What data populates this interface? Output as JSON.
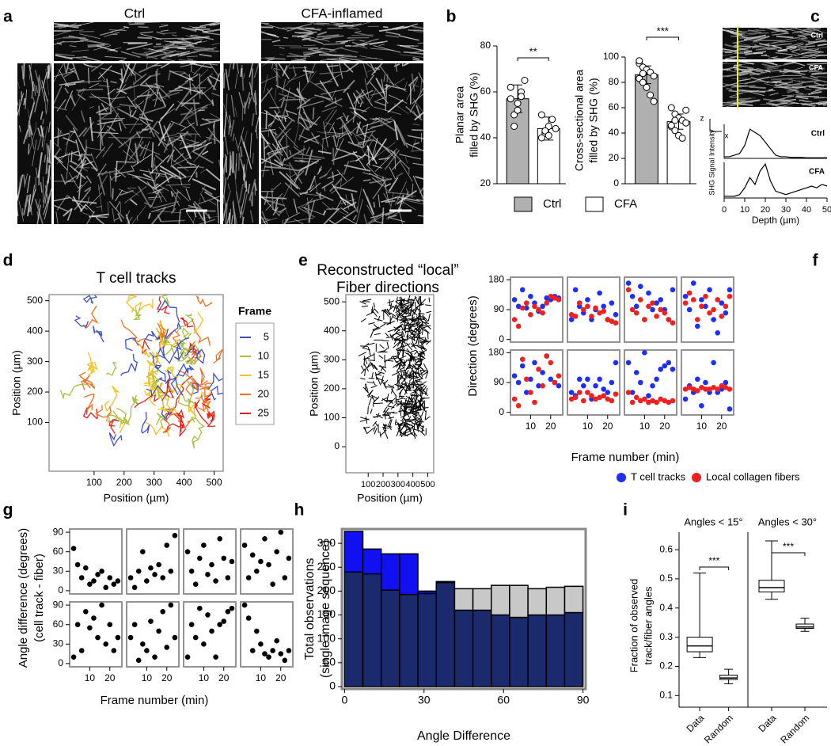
{
  "chart_data": [
    {
      "type": "image",
      "label": "a",
      "titles": [
        "Ctrl",
        "CFA-inflamed"
      ]
    },
    {
      "type": "bar",
      "label": "b",
      "ylabel": [
        "Planar area",
        "filled by SHG (%)"
      ],
      "categories": [
        "Ctrl",
        "CFA"
      ],
      "colors": [
        "#b0b0b0",
        "#ffffff"
      ],
      "values": [
        57,
        44
      ],
      "errors": [
        6,
        5
      ],
      "points": [
        [
          62,
          50,
          55,
          60,
          65,
          57,
          45,
          52,
          58
        ],
        [
          50,
          42,
          45,
          48,
          44,
          40,
          43,
          41
        ]
      ],
      "ylim": [
        20,
        80
      ],
      "yticks": [
        20,
        40,
        60,
        80
      ],
      "annotation": "**"
    },
    {
      "type": "bar",
      "ylabel": [
        "Cross-sectional area",
        "filled by SHG (%)"
      ],
      "colors": [
        "#b0b0b0",
        "#ffffff"
      ],
      "values": [
        86,
        49
      ],
      "errors": [
        7,
        6
      ],
      "points": [
        [
          95,
          92,
          90,
          88,
          85,
          83,
          80,
          76,
          70,
          65,
          97,
          87
        ],
        [
          60,
          55,
          52,
          50,
          48,
          45,
          42,
          38,
          36,
          58,
          46,
          50
        ]
      ],
      "ylim": [
        0,
        100
      ],
      "yticks": [
        0,
        20,
        40,
        60,
        80,
        100
      ],
      "annotation": "***"
    },
    {
      "type": "line",
      "label": "c",
      "image_labels": [
        "Ctrl",
        "CFA"
      ],
      "axis_labels": [
        "z",
        "x"
      ],
      "ylabel": "SHG Signal Intensity",
      "xlabel": "Depth (µm)",
      "color": "#000000",
      "x": [
        0,
        2.5,
        5,
        7.5,
        10,
        12.5,
        15,
        17.5,
        20,
        22.5,
        25,
        27.5,
        30,
        32.5,
        35,
        37.5,
        40,
        42.5,
        45,
        47.5,
        50
      ],
      "series": [
        {
          "name": "Ctrl",
          "values": [
            0.05,
            0.05,
            0.1,
            0.15,
            0.4,
            0.9,
            0.8,
            0.7,
            0.5,
            0.3,
            0.1,
            0.05,
            0.05,
            0.03,
            0.03,
            0.03,
            0.02,
            0.02,
            0.02,
            0.02,
            0.02
          ]
        },
        {
          "name": "CFA",
          "values": [
            0.05,
            0.05,
            0.05,
            0.1,
            0.3,
            0.6,
            0.4,
            0.8,
            1.0,
            0.5,
            0.2,
            0.15,
            0.1,
            0.15,
            0.2,
            0.25,
            0.3,
            0.35,
            0.3,
            0.4,
            0.35
          ]
        }
      ],
      "xlim": [
        0,
        50
      ],
      "xticks": [
        0,
        10,
        20,
        30,
        40,
        50
      ],
      "ylim": [
        0,
        1.05
      ]
    },
    {
      "type": "tracks",
      "label": "d",
      "title": "T cell tracks",
      "xlabel": "Position (µm)",
      "ylabel": "Position (µm)",
      "xlim": [
        -50,
        530
      ],
      "ylim": [
        -60,
        520
      ],
      "xticks": [
        100,
        200,
        300,
        400,
        500
      ],
      "yticks": [
        100,
        200,
        300,
        400,
        500
      ],
      "legend": {
        "title": "Frame",
        "labels": [
          5,
          10,
          15,
          20,
          25
        ],
        "colors": [
          "#3f4fc0",
          "#a8c040",
          "#f2c31f",
          "#f07020",
          "#e02020"
        ]
      }
    },
    {
      "type": "fibers",
      "label": "e",
      "title": [
        "Reconstructed “local”",
        "Fiber directions"
      ],
      "xlabel": "Position (µm)",
      "ylabel": "Position (µm)",
      "xlim": [
        -50,
        540
      ],
      "ylim": [
        -90,
        525
      ],
      "xticks": [
        100,
        200,
        300,
        400,
        500
      ],
      "yticks": [
        0,
        100,
        200,
        300,
        400,
        500
      ],
      "color": "#000000"
    },
    {
      "type": "scatter",
      "label": "f",
      "ylabel": [
        "Direction (degrees)"
      ],
      "xlabel": "Frame number (min)",
      "x": [
        2,
        4,
        6,
        8,
        10,
        12,
        14,
        16,
        18,
        20,
        22,
        24
      ],
      "xlim": [
        0,
        26
      ],
      "xticks": [
        10,
        20
      ],
      "ylim": [
        -8,
        188
      ],
      "yticks": [
        0,
        90,
        180
      ],
      "series": [
        {
          "name": "T cell tracks",
          "color": "#1f2ff0",
          "panels": [
            [
              120,
              100,
              150,
              95,
              130,
              110,
              85,
              100,
              125,
              120,
              130,
              125
            ],
            [
              60,
              150,
              100,
              80,
              120,
              60,
              90,
              140,
              100,
              60,
              110,
              75
            ],
            [
              170,
              130,
              100,
              160,
              60,
              140,
              90,
              110,
              120,
              90,
              60,
              150
            ],
            [
              130,
              90,
              170,
              40,
              120,
              100,
              150,
              60,
              20,
              110,
              80,
              150
            ],
            [
              110,
              90,
              140,
              60,
              100,
              150,
              80,
              120,
              170,
              100,
              90,
              80
            ],
            [
              60,
              50,
              100,
              80,
              100,
              40,
              80,
              100,
              70,
              60,
              90,
              150
            ],
            [
              150,
              60,
              120,
              90,
              180,
              50,
              80,
              100,
              130,
              140,
              150,
              130
            ],
            [
              40,
              80,
              60,
              100,
              20,
              90,
              60,
              150,
              60,
              70,
              90,
              10
            ]
          ]
        },
        {
          "name": "Local collagen fibers",
          "color": "#ee2020",
          "panels": [
            [
              60,
              40,
              95,
              110,
              75,
              100,
              90,
              80,
              110,
              130,
              125,
              120
            ],
            [
              75,
              70,
              110,
              90,
              100,
              70,
              95,
              80,
              85,
              60,
              55,
              50
            ],
            [
              150,
              90,
              80,
              120,
              60,
              100,
              110,
              70,
              90,
              80,
              60,
              50
            ],
            [
              110,
              140,
              120,
              60,
              100,
              130,
              80,
              90,
              120,
              70,
              100,
              130
            ],
            [
              40,
              20,
              160,
              100,
              60,
              30,
              130,
              80,
              170,
              150,
              90,
              110
            ],
            [
              40,
              45,
              60,
              35,
              60,
              50,
              40,
              45,
              50,
              40,
              35,
              55
            ],
            [
              60,
              30,
              45,
              35,
              40,
              30,
              35,
              30,
              40,
              35,
              30,
              35
            ],
            [
              70,
              75,
              70,
              65,
              75,
              70,
              70,
              75,
              70,
              80,
              75,
              70
            ]
          ]
        }
      ]
    },
    {
      "type": "scatter",
      "label": "g",
      "ylabel": [
        "Angle difference (degrees)",
        "(cell track - fiber)"
      ],
      "xlabel": "Frame number (min)",
      "x": [
        2,
        4,
        6,
        8,
        10,
        12,
        14,
        16,
        18,
        20,
        22,
        24
      ],
      "xlim": [
        0,
        26
      ],
      "xticks": [
        10,
        20
      ],
      "ylim": [
        -5,
        95
      ],
      "yticks": [
        0,
        30,
        60,
        90
      ],
      "series": [
        {
          "color": "#000000",
          "panels": [
            [
              65,
              40,
              20,
              35,
              10,
              15,
              25,
              30,
              5,
              20,
              10,
              15
            ],
            [
              20,
              5,
              30,
              60,
              15,
              35,
              25,
              40,
              20,
              70,
              30,
              85
            ],
            [
              60,
              30,
              10,
              50,
              70,
              25,
              40,
              15,
              80,
              50,
              20,
              45
            ],
            [
              70,
              20,
              55,
              30,
              45,
              80,
              40,
              10,
              60,
              90,
              20,
              50
            ],
            [
              10,
              60,
              20,
              80,
              55,
              70,
              40,
              90,
              30,
              60,
              20,
              40
            ],
            [
              40,
              60,
              5,
              30,
              20,
              65,
              10,
              50,
              80,
              25,
              90,
              40
            ],
            [
              10,
              60,
              40,
              85,
              30,
              75,
              50,
              10,
              60,
              65,
              80,
              85
            ],
            [
              90,
              70,
              20,
              50,
              30,
              15,
              10,
              20,
              35,
              15,
              5,
              20
            ]
          ]
        }
      ]
    },
    {
      "type": "histogram",
      "label": "h",
      "ylabel": [
        "Total observations",
        "(single image sequence)"
      ],
      "xlabel": "Angle Difference",
      "bins": [
        0,
        6.92,
        13.85,
        20.77,
        27.69,
        34.62,
        41.54,
        48.46,
        55.38,
        62.31,
        69.23,
        76.15,
        83.08,
        90
      ],
      "series": [
        {
          "color": "#1a2a6c",
          "values": [
            240,
            236,
            202,
            193,
            195,
            218,
            160,
            160,
            150,
            145,
            150,
            150,
            155
          ]
        },
        {
          "colors": [
            "#1010f0",
            "#1010f0",
            "#1010f0",
            "#1010f0",
            "#1010f0",
            "#1010f0",
            "#c8c8c8",
            "#c8c8c8",
            "#c8c8c8",
            "#c8c8c8",
            "#c8c8c8",
            "#c8c8c8",
            "#c8c8c8"
          ],
          "values": [
            85,
            52,
            76,
            85,
            5,
            2,
            45,
            45,
            62,
            67,
            55,
            58,
            55
          ]
        }
      ],
      "xlim": [
        -1,
        91
      ],
      "xticks": [
        0,
        30,
        60,
        90
      ],
      "ylim": [
        -5,
        330
      ],
      "yticks": [
        0,
        50,
        100,
        150,
        200,
        250,
        300
      ]
    },
    {
      "type": "box",
      "label": "i",
      "ylabel": [
        "Fraction of observed",
        "track/fiber angles"
      ],
      "ylim": [
        0.06,
        0.66
      ],
      "yticks": [
        0.1,
        0.2,
        0.3,
        0.4,
        0.5,
        0.6
      ],
      "panels": [
        {
          "title": "Angles < 15°",
          "categories": [
            "Data",
            "Random"
          ],
          "boxes": [
            [
              0.23,
              0.25,
              0.27,
              0.3,
              0.52
            ],
            [
              0.14,
              0.155,
              0.16,
              0.17,
              0.19
            ]
          ],
          "annotation": "***"
        },
        {
          "title": "Angles < 30°",
          "categories": [
            "Data",
            "Random"
          ],
          "boxes": [
            [
              0.43,
              0.455,
              0.47,
              0.495,
              0.63
            ],
            [
              0.32,
              0.33,
              0.335,
              0.345,
              0.365
            ]
          ],
          "annotation": "***"
        }
      ]
    }
  ]
}
